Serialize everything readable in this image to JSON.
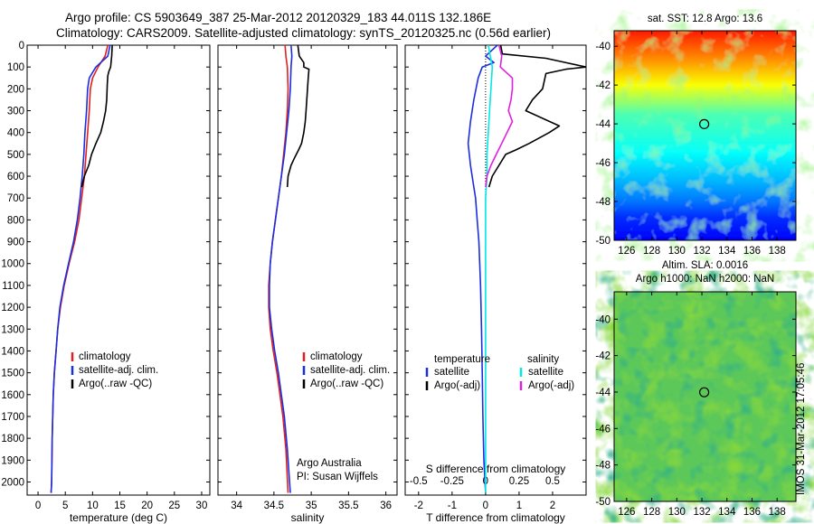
{
  "header": {
    "line1": "Argo profile: CS 5903649_387 25-Mar-2012 20120329_183 44.011S 132.186E",
    "line2": "Climatology: CARS2009. Satellite-adjusted climatology: synTS_20120325.nc (0.56d earlier)"
  },
  "credit": {
    "line1": "Argo Australia",
    "line2": "PI: Susan Wijffels"
  },
  "watermark": "IMOS 31-Mar-2012 17:05:46",
  "colors": {
    "climatology": "#e02020",
    "satellite": "#1a2ee0",
    "argo": "#000000",
    "salinity_satellite": "#00e8e8",
    "salinity_argo": "#e020e0"
  },
  "chart_data": [
    {
      "type": "line",
      "xlabel": "temperature (deg C)",
      "xlim": [
        -2,
        31.5
      ],
      "xticks": [
        0,
        5,
        10,
        15,
        20,
        25,
        30
      ],
      "ylim": [
        2060,
        0
      ],
      "yticks": [
        0,
        100,
        200,
        300,
        400,
        500,
        600,
        700,
        800,
        900,
        1000,
        1100,
        1200,
        1300,
        1400,
        1500,
        1600,
        1700,
        1800,
        1900,
        2000
      ],
      "legend": [
        "climatology",
        "satellite-adj. clim.",
        "Argo(..raw -QC)"
      ],
      "legend_placement": "lower-center",
      "series": [
        {
          "name": "climatology",
          "color": "#e02020",
          "x": [
            12.8,
            12.3,
            11.0,
            10.0,
            9.6,
            9.4,
            9.1,
            8.8,
            8.5,
            8.0,
            7.5,
            6.7,
            5.7,
            4.8,
            4.1,
            3.6,
            3.3,
            3.0,
            2.8,
            2.6,
            2.5,
            2.4
          ],
          "y": [
            0,
            50,
            100,
            150,
            200,
            300,
            400,
            500,
            600,
            700,
            800,
            900,
            1000,
            1100,
            1200,
            1300,
            1400,
            1500,
            1600,
            1800,
            2000,
            2050
          ]
        },
        {
          "name": "satellite-adj. clim.",
          "color": "#1a2ee0",
          "x": [
            13.2,
            12.8,
            10.6,
            9.4,
            9.1,
            8.9,
            8.6,
            8.4,
            8.1,
            7.7,
            7.2,
            6.5,
            5.6,
            4.7,
            4.0,
            3.6,
            3.3,
            3.0,
            2.8,
            2.6,
            2.5,
            2.4
          ],
          "y": [
            0,
            50,
            100,
            150,
            200,
            300,
            400,
            500,
            600,
            700,
            800,
            900,
            1000,
            1100,
            1200,
            1300,
            1400,
            1500,
            1600,
            1800,
            2000,
            2050
          ]
        },
        {
          "name": "Argo(..raw -QC)",
          "color": "#000000",
          "x": [
            13.6,
            13.5,
            13.3,
            13.0,
            12.8,
            12.7,
            12.6,
            12.4,
            12.0,
            11.5,
            10.6,
            9.8,
            9.3,
            8.5,
            8.0
          ],
          "y": [
            0,
            50,
            100,
            120,
            140,
            180,
            250,
            300,
            350,
            400,
            450,
            500,
            550,
            600,
            650
          ]
        }
      ]
    },
    {
      "type": "line",
      "xlabel": "salinity",
      "xlim": [
        33.75,
        36.15
      ],
      "xticks": [
        34,
        34.5,
        35,
        35.5,
        36
      ],
      "ylim": [
        2060,
        0
      ],
      "legend": [
        "climatology",
        "satellite-adj. clim.",
        "Argo(..raw -QC)"
      ],
      "legend_placement": "lower-center",
      "series": [
        {
          "name": "climatology",
          "color": "#e02020",
          "x": [
            34.65,
            34.66,
            34.68,
            34.69,
            34.68,
            34.66,
            34.63,
            34.6,
            34.56,
            34.52,
            34.48,
            34.45,
            34.43,
            34.43,
            34.45,
            34.49,
            34.54,
            34.58,
            34.62,
            34.66,
            34.69
          ],
          "y": [
            0,
            50,
            100,
            200,
            300,
            400,
            500,
            600,
            700,
            800,
            900,
            1000,
            1100,
            1200,
            1300,
            1400,
            1500,
            1600,
            1700,
            1850,
            2050
          ]
        },
        {
          "name": "satellite-adj. clim.",
          "color": "#1a2ee0",
          "x": [
            34.73,
            34.74,
            34.73,
            34.72,
            34.7,
            34.67,
            34.64,
            34.6,
            34.56,
            34.52,
            34.48,
            34.45,
            34.44,
            34.44,
            34.47,
            34.51,
            34.56,
            34.6,
            34.64,
            34.68,
            34.72
          ],
          "y": [
            0,
            50,
            100,
            200,
            300,
            400,
            500,
            600,
            700,
            800,
            900,
            1000,
            1100,
            1200,
            1300,
            1400,
            1500,
            1600,
            1700,
            1850,
            2050
          ]
        },
        {
          "name": "Argo(..raw -QC)",
          "color": "#000000",
          "x": [
            34.82,
            34.84,
            34.9,
            34.9,
            34.97,
            34.96,
            34.95,
            34.94,
            34.93,
            34.92,
            34.9,
            34.87,
            34.83,
            34.8,
            34.77,
            34.73,
            34.69,
            34.68
          ],
          "y": [
            0,
            50,
            80,
            100,
            110,
            150,
            200,
            250,
            300,
            350,
            400,
            450,
            480,
            500,
            520,
            550,
            600,
            650
          ]
        }
      ]
    },
    {
      "type": "line",
      "xlabel": "T difference from climatology",
      "xlabel_top": "S difference from climatology",
      "xlim": [
        -2.4,
        3.0
      ],
      "xticks": [
        -2,
        -1,
        0,
        1,
        2
      ],
      "xticks_top": [
        -0.5,
        -0.25,
        0,
        0.25,
        0.5
      ],
      "ylim": [
        2060,
        0
      ],
      "zero_line": "dotted",
      "legend_titles": [
        "temperature",
        "salinity"
      ],
      "legend": [
        "satellite",
        "Argo(-adj)",
        "satellite",
        "Argo(-adj)"
      ],
      "legend_placement": "lower-center",
      "series": [
        {
          "name": "satellite",
          "group": "temperature",
          "color": "#1a2ee0",
          "x": [
            0.35,
            0.0,
            0.25,
            -0.1,
            -0.22,
            -0.35,
            -0.45,
            -0.52,
            -0.45,
            -0.35,
            -0.3,
            -0.25,
            -0.2,
            -0.15,
            -0.12,
            -0.1,
            -0.08,
            -0.05,
            0.0
          ],
          "y": [
            0,
            50,
            80,
            100,
            150,
            250,
            350,
            450,
            550,
            650,
            700,
            800,
            900,
            1100,
            1300,
            1500,
            1700,
            1900,
            2050
          ]
        },
        {
          "name": "Argo(-adj)",
          "group": "temperature",
          "color": "#000000",
          "x": [
            0.45,
            0.5,
            1.8,
            3.0,
            2.4,
            1.8,
            1.7,
            1.4,
            1.2,
            2.2,
            1.9,
            1.3,
            0.9,
            0.6,
            0.4,
            0.2,
            0.1
          ],
          "y": [
            0,
            40,
            60,
            100,
            110,
            130,
            200,
            250,
            300,
            370,
            400,
            450,
            480,
            500,
            550,
            600,
            650
          ]
        },
        {
          "name": "satellite",
          "group": "salinity",
          "color": "#00e8e8",
          "x": [
            0.02,
            0.05,
            0.04,
            0.03,
            0.02,
            0.01,
            0.01,
            0.0,
            0.0,
            0.0,
            0.0,
            0.0,
            0.0,
            0.0
          ],
          "y": [
            0,
            100,
            200,
            300,
            400,
            500,
            600,
            700,
            900,
            1100,
            1300,
            1500,
            1800,
            2050
          ]
        },
        {
          "name": "Argo(-adj)",
          "group": "salinity",
          "color": "#e020e0",
          "x": [
            0.1,
            0.12,
            0.11,
            0.2,
            0.2,
            0.19,
            0.17,
            0.2,
            0.16,
            0.12,
            0.08,
            0.04,
            0.01,
            0.0
          ],
          "y": [
            0,
            50,
            100,
            150,
            200,
            250,
            300,
            350,
            400,
            450,
            500,
            550,
            600,
            650
          ]
        }
      ]
    },
    {
      "type": "heatmap",
      "title": "sat. SST: 12.8  Argo: 13.6",
      "xlim": [
        125,
        139.5
      ],
      "ylim": [
        -50,
        -39.2
      ],
      "xticks": [
        126,
        128,
        130,
        132,
        134,
        136,
        138
      ],
      "yticks": [
        -40,
        -42,
        -44,
        -46,
        -48,
        -50
      ],
      "colormap": "jet",
      "marker": {
        "lon": 132.186,
        "lat": -44.011,
        "shape": "circle"
      },
      "bands": [
        {
          "lat": -39.2,
          "value": 0.85
        },
        {
          "lat": -40.5,
          "value": 0.75
        },
        {
          "lat": -42.0,
          "value": 0.62
        },
        {
          "lat": -43.5,
          "value": 0.45
        },
        {
          "lat": -45.5,
          "value": 0.38
        },
        {
          "lat": -47.0,
          "value": 0.3
        },
        {
          "lat": -48.0,
          "value": 0.24
        },
        {
          "lat": -48.8,
          "value": 0.17
        },
        {
          "lat": -50.0,
          "value": 0.12
        }
      ]
    },
    {
      "type": "heatmap",
      "title_line1": "Altim. SLA: 0.0016",
      "title_line2": "Argo h1000: NaN  h2000: NaN",
      "xlim": [
        125,
        139.5
      ],
      "ylim": [
        -50,
        -38.5
      ],
      "xticks": [
        126,
        128,
        130,
        132,
        134,
        136,
        138
      ],
      "yticks": [
        -40,
        -42,
        -44,
        -46,
        -48,
        -50
      ],
      "colormap": "jet",
      "marker": {
        "lon": 132.186,
        "lat": -44.011,
        "shape": "circle"
      }
    }
  ]
}
